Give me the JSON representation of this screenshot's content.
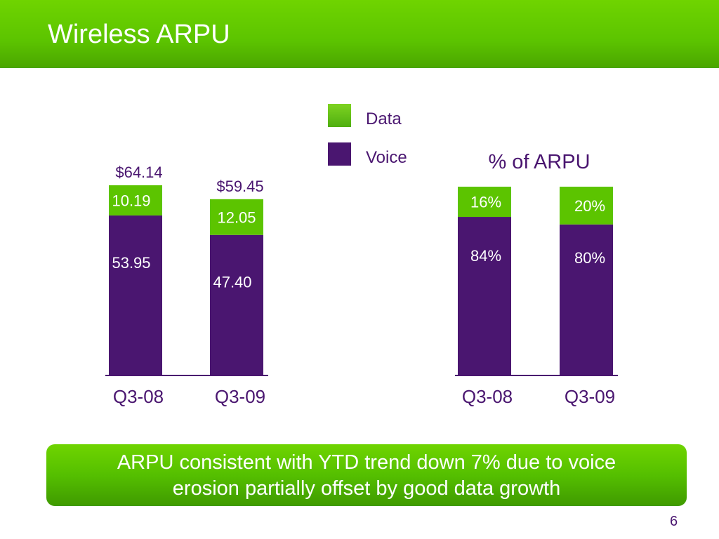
{
  "slide": {
    "title": "Wireless ARPU",
    "page_number": "6",
    "callout_line1": "ARPU consistent with YTD trend down 7% due to voice",
    "callout_line2": "erosion partially offset by good data growth"
  },
  "legend": {
    "data_label": "Data",
    "voice_label": "Voice"
  },
  "colors": {
    "data": "#5cc400",
    "voice": "#4a1670",
    "axis": "#4a1670",
    "header": "#5cc400"
  },
  "chart_data": [
    {
      "type": "bar",
      "stacked": true,
      "title": "",
      "categories": [
        "Q3-08",
        "Q3-09"
      ],
      "series": [
        {
          "name": "Voice",
          "values": [
            53.95,
            47.4
          ],
          "labels": [
            "53.95",
            "47.40"
          ]
        },
        {
          "name": "Data",
          "values": [
            10.19,
            12.05
          ],
          "labels": [
            "10.19",
            "12.05"
          ]
        }
      ],
      "totals": [
        "$64.14",
        "$59.45"
      ],
      "xlabel": "",
      "ylabel": "",
      "ylim": [
        0,
        64.14
      ],
      "grid": false,
      "legend": "top"
    },
    {
      "type": "bar",
      "stacked": true,
      "title": "% of ARPU",
      "categories": [
        "Q3-08",
        "Q3-09"
      ],
      "series": [
        {
          "name": "Voice",
          "values": [
            84,
            80
          ],
          "labels": [
            "84%",
            "80%"
          ]
        },
        {
          "name": "Data",
          "values": [
            16,
            20
          ],
          "labels": [
            "16%",
            "20%"
          ]
        }
      ],
      "xlabel": "",
      "ylabel": "",
      "ylim": [
        0,
        100
      ],
      "grid": false,
      "legend": "top"
    }
  ]
}
